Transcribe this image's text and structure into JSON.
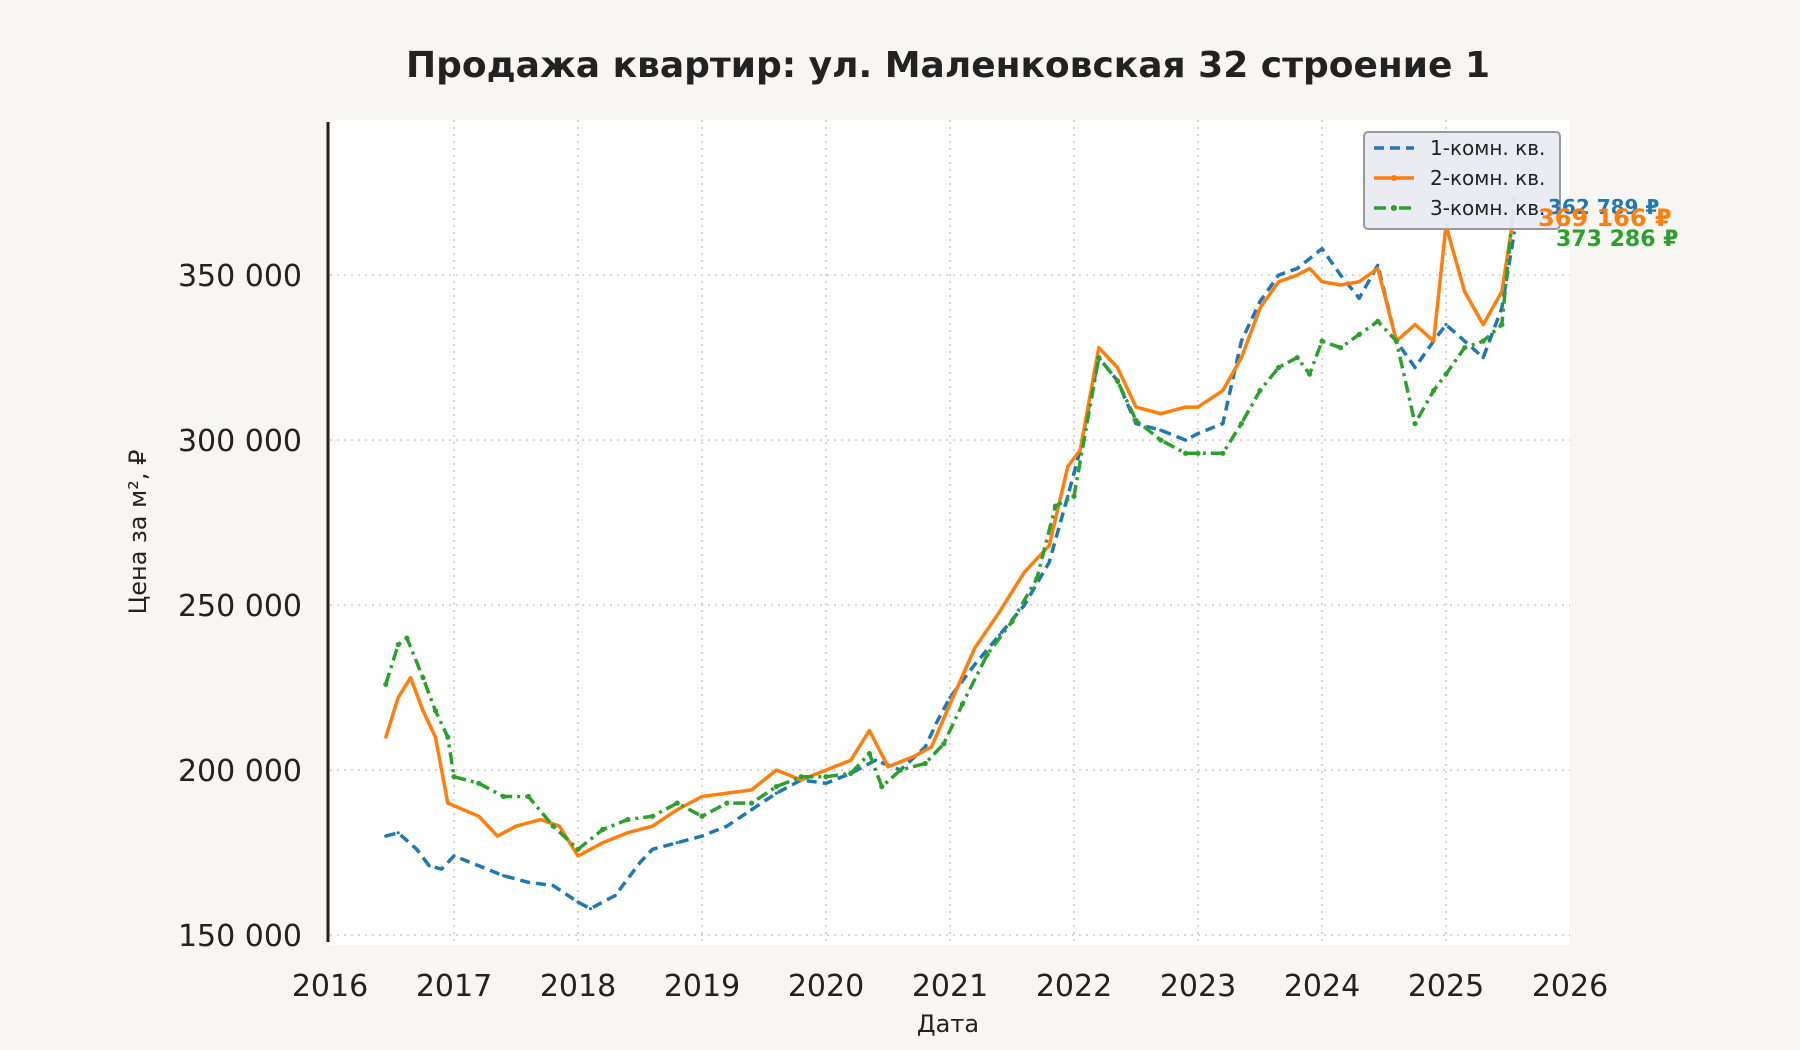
{
  "chart_data": {
    "type": "line",
    "title": "Продажа квартир: ул. Маленковская 32 строение 1",
    "xlabel": "Дата",
    "ylabel": "Цена за м², ₽",
    "xlim": [
      2016,
      2026
    ],
    "ylim": [
      147000,
      397000
    ],
    "x_ticks": [
      "2016",
      "2017",
      "2018",
      "2019",
      "2020",
      "2021",
      "2022",
      "2023",
      "2024",
      "2025",
      "2026"
    ],
    "y_ticks": [
      {
        "value": 150000,
        "label": "150 000"
      },
      {
        "value": 200000,
        "label": "200 000"
      },
      {
        "value": 250000,
        "label": "250 000"
      },
      {
        "value": 300000,
        "label": "300 000"
      },
      {
        "value": 350000,
        "label": "350 000"
      }
    ],
    "grid": true,
    "legend_position": "top-right",
    "series": [
      {
        "name": "1-комн. кв.",
        "color": "#1f77b4",
        "style": "dashed",
        "end_label": "362 789 ₽",
        "x": [
          2016.45,
          2016.55,
          2016.7,
          2016.8,
          2016.9,
          2017.0,
          2017.2,
          2017.4,
          2017.6,
          2017.8,
          2018.0,
          2018.1,
          2018.3,
          2018.5,
          2018.6,
          2018.8,
          2019.0,
          2019.2,
          2019.4,
          2019.6,
          2019.8,
          2020.0,
          2020.2,
          2020.4,
          2020.6,
          2020.8,
          2020.9,
          2021.0,
          2021.2,
          2021.4,
          2021.6,
          2021.8,
          2021.95,
          2022.05,
          2022.2,
          2022.35,
          2022.5,
          2022.7,
          2022.9,
          2023.0,
          2023.2,
          2023.35,
          2023.5,
          2023.65,
          2023.8,
          2023.9,
          2024.0,
          2024.15,
          2024.3,
          2024.45,
          2024.6,
          2024.75,
          2024.9,
          2025.0,
          2025.15,
          2025.3,
          2025.45,
          2025.55
        ],
        "y": [
          180000,
          181000,
          176000,
          171000,
          170000,
          174000,
          171000,
          168000,
          166000,
          165000,
          160000,
          158000,
          162000,
          172000,
          176000,
          178000,
          180000,
          183000,
          188000,
          193000,
          197000,
          196000,
          199000,
          203000,
          200000,
          207000,
          215000,
          222000,
          232000,
          241000,
          250000,
          263000,
          283000,
          297000,
          325000,
          318000,
          305000,
          303000,
          300000,
          302000,
          305000,
          330000,
          342000,
          350000,
          352000,
          355000,
          358000,
          350000,
          343000,
          353000,
          330000,
          322000,
          330000,
          335000,
          330000,
          325000,
          340000,
          362789
        ]
      },
      {
        "name": "2-комн. кв.",
        "color": "#ff7f0e",
        "style": "solid",
        "end_label": "369 166 ₽",
        "x": [
          2016.45,
          2016.55,
          2016.65,
          2016.75,
          2016.85,
          2016.95,
          2017.2,
          2017.35,
          2017.5,
          2017.7,
          2017.85,
          2018.0,
          2018.2,
          2018.4,
          2018.6,
          2018.8,
          2019.0,
          2019.2,
          2019.4,
          2019.6,
          2019.8,
          2020.0,
          2020.2,
          2020.35,
          2020.5,
          2020.7,
          2020.85,
          2021.0,
          2021.2,
          2021.4,
          2021.6,
          2021.8,
          2021.95,
          2022.05,
          2022.2,
          2022.35,
          2022.5,
          2022.7,
          2022.9,
          2023.0,
          2023.2,
          2023.35,
          2023.5,
          2023.65,
          2023.8,
          2023.9,
          2024.0,
          2024.15,
          2024.3,
          2024.45,
          2024.6,
          2024.75,
          2024.9,
          2025.0,
          2025.15,
          2025.3,
          2025.45,
          2025.55
        ],
        "y": [
          210000,
          222000,
          228000,
          218000,
          210000,
          190000,
          186000,
          180000,
          183000,
          185000,
          183000,
          174000,
          178000,
          181000,
          183000,
          188000,
          192000,
          193000,
          194000,
          200000,
          197000,
          200000,
          203000,
          212000,
          201000,
          204000,
          207000,
          220000,
          237000,
          248000,
          260000,
          268000,
          292000,
          297000,
          328000,
          322000,
          310000,
          308000,
          310000,
          310000,
          315000,
          325000,
          340000,
          348000,
          350000,
          352000,
          348000,
          347000,
          348000,
          352000,
          330000,
          335000,
          330000,
          365000,
          345000,
          335000,
          345000,
          369166
        ]
      },
      {
        "name": "3-комн. кв.",
        "color": "#2ca02c",
        "style": "dashdot",
        "end_label": "373 286 ₽",
        "x": [
          2016.45,
          2016.55,
          2016.62,
          2016.75,
          2016.85,
          2016.95,
          2017.0,
          2017.2,
          2017.4,
          2017.6,
          2017.8,
          2018.0,
          2018.2,
          2018.4,
          2018.6,
          2018.8,
          2019.0,
          2019.2,
          2019.4,
          2019.6,
          2019.8,
          2020.0,
          2020.2,
          2020.35,
          2020.45,
          2020.6,
          2020.8,
          2020.95,
          2021.1,
          2021.3,
          2021.5,
          2021.7,
          2021.85,
          2022.0,
          2022.2,
          2022.35,
          2022.5,
          2022.7,
          2022.9,
          2023.0,
          2023.2,
          2023.35,
          2023.5,
          2023.65,
          2023.8,
          2023.9,
          2024.0,
          2024.15,
          2024.3,
          2024.45,
          2024.6,
          2024.75,
          2024.9,
          2025.0,
          2025.15,
          2025.3,
          2025.45,
          2025.55
        ],
        "y": [
          226000,
          238000,
          240000,
          228000,
          218000,
          210000,
          198000,
          196000,
          192000,
          192000,
          183000,
          176000,
          182000,
          185000,
          186000,
          190000,
          186000,
          190000,
          190000,
          195000,
          198000,
          198000,
          199000,
          205000,
          195000,
          200000,
          202000,
          208000,
          220000,
          235000,
          245000,
          258000,
          280000,
          283000,
          325000,
          318000,
          306000,
          300000,
          296000,
          296000,
          296000,
          305000,
          315000,
          322000,
          325000,
          320000,
          330000,
          328000,
          332000,
          336000,
          330000,
          305000,
          315000,
          320000,
          328000,
          330000,
          335000,
          373286
        ]
      }
    ]
  }
}
